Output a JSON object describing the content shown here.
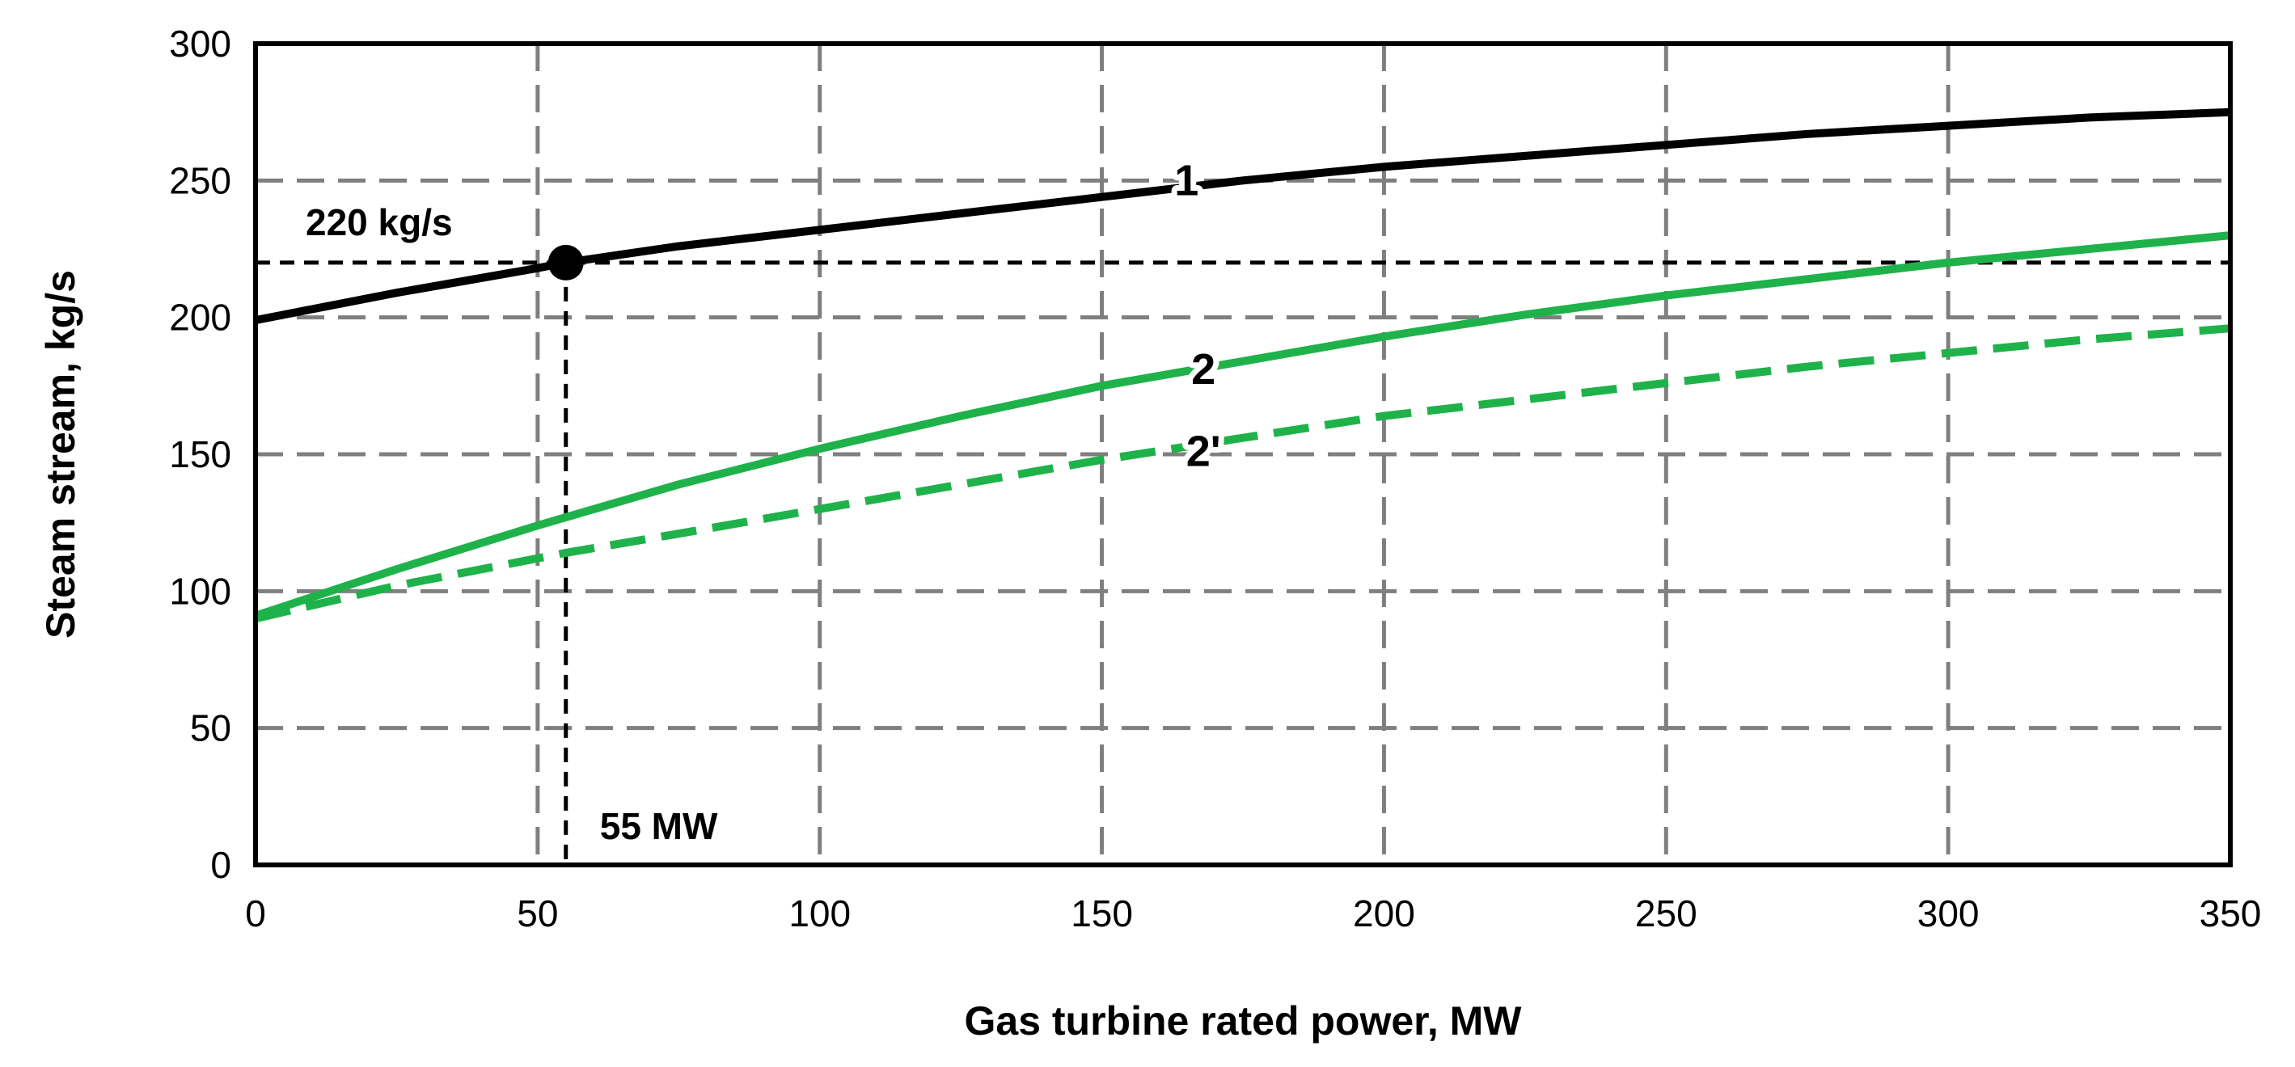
{
  "chart_data": {
    "type": "line",
    "title": "",
    "xlabel": "Gas turbine rated power, MW",
    "ylabel": "Steam stream, kg/s",
    "xlim": [
      0,
      350
    ],
    "ylim": [
      0,
      300
    ],
    "x_ticks": [
      0,
      50,
      100,
      150,
      200,
      250,
      300,
      350
    ],
    "y_ticks": [
      0,
      50,
      100,
      150,
      200,
      250,
      300
    ],
    "grid": true,
    "grid_style": "dashed",
    "series": [
      {
        "name": "1",
        "label": "1",
        "color": "#000000",
        "style": "solid",
        "x": [
          0,
          25,
          50,
          55,
          75,
          100,
          125,
          150,
          175,
          200,
          225,
          250,
          275,
          300,
          325,
          350
        ],
        "y": [
          199,
          209,
          218,
          220,
          226,
          232,
          238,
          244,
          250,
          255,
          259,
          263,
          267,
          270,
          273,
          275
        ]
      },
      {
        "name": "2",
        "label": "2",
        "color": "#1fb24a",
        "style": "solid",
        "x": [
          0,
          25,
          50,
          55,
          75,
          100,
          125,
          150,
          175,
          200,
          225,
          250,
          275,
          300,
          325,
          350
        ],
        "y": [
          91,
          108,
          124,
          127,
          139,
          152,
          164,
          175,
          184,
          193,
          201,
          208,
          214,
          220,
          225,
          230
        ]
      },
      {
        "name": "2'",
        "label": "2'",
        "color": "#1fb24a",
        "style": "dashed",
        "x": [
          0,
          25,
          50,
          55,
          75,
          100,
          125,
          150,
          175,
          200,
          225,
          250,
          275,
          300,
          325,
          350
        ],
        "y": [
          90,
          102,
          112,
          114,
          121,
          130,
          139,
          148,
          156,
          164,
          170,
          176,
          182,
          187,
          192,
          196
        ]
      }
    ],
    "annotations": [
      {
        "text": "220 kg/s",
        "x": 55,
        "y": 220,
        "target": "horizontal-reference"
      },
      {
        "text": "55 MW",
        "x": 55,
        "y": 0,
        "target": "vertical-reference"
      }
    ],
    "marker": {
      "x": 55,
      "y": 220,
      "color": "#000000"
    },
    "reference_lines": {
      "horizontal_y": 220,
      "vertical_x": 55,
      "color": "#000000",
      "style": "dashed"
    },
    "label_positions": {
      "1": {
        "x": 165,
        "y": 250
      },
      "2": {
        "x": 168,
        "y": 181
      },
      "2'": {
        "x": 168,
        "y": 151
      }
    },
    "grid_color": "#7f7f7f",
    "frame_color": "#000000"
  }
}
